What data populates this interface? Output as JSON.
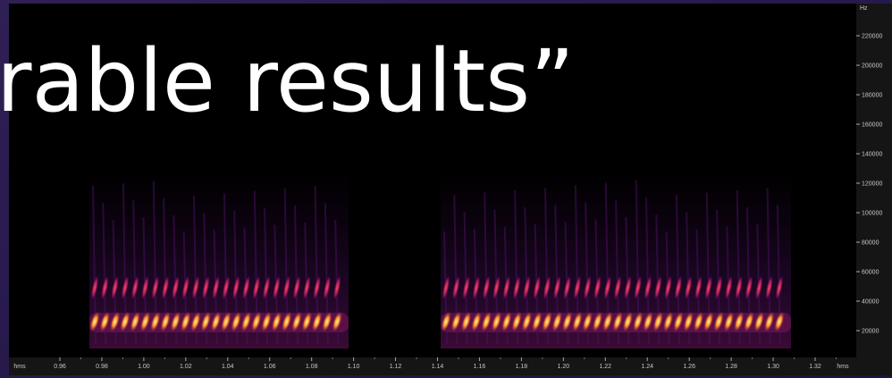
{
  "overlay_text": "rable results”",
  "y_axis": {
    "unit": "Hz",
    "ticks": [
      "220000",
      "200000",
      "180000",
      "160000",
      "140000",
      "120000",
      "100000",
      "80000",
      "60000",
      "40000",
      "20000"
    ]
  },
  "x_axis": {
    "unit": "hms",
    "ticks": [
      "0.96",
      "0.98",
      "1.00",
      "1.02",
      "1.04",
      "1.06",
      "1.08",
      "1.10",
      "1.12",
      "1.14",
      "1.16",
      "1.18",
      "1.20",
      "1.22",
      "1.24",
      "1.26",
      "1.28",
      "1.30",
      "1.32"
    ]
  }
}
